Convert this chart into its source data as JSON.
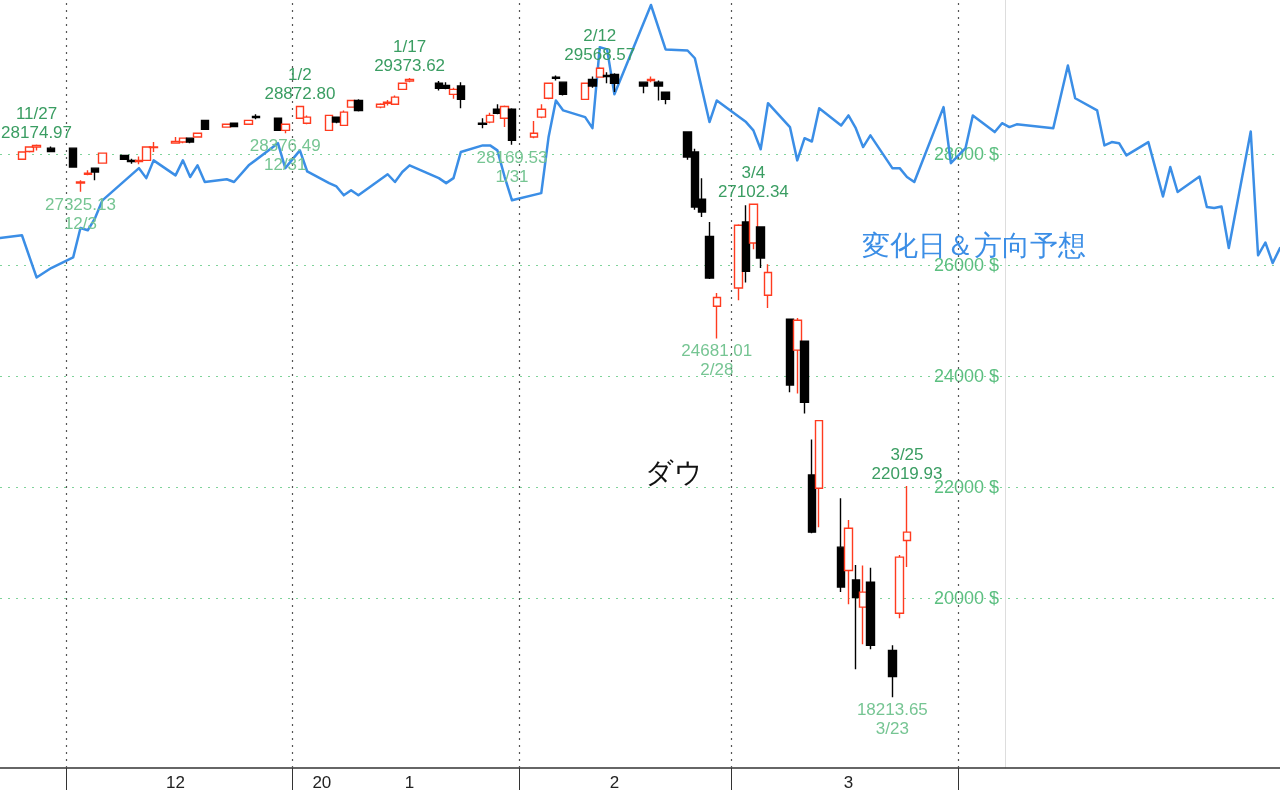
{
  "chart_data": {
    "type": "candlestick",
    "xlim": [
      "2019-11-22",
      "2020-05-15"
    ],
    "xticks": [
      {
        "value": "2019-12-01",
        "label": null
      },
      {
        "value": "2019-12-16",
        "label": "12"
      },
      {
        "value": "2020-01-01",
        "label": null
      },
      {
        "value": "2020-01-05",
        "label": "20"
      },
      {
        "value": "2020-01-17",
        "label": "1"
      },
      {
        "value": "2020-02-01",
        "label": null
      },
      {
        "value": "2020-02-14",
        "label": "2"
      },
      {
        "value": "2020-03-01",
        "label": null
      },
      {
        "value": "2020-03-17",
        "label": "3"
      },
      {
        "value": "2020-04-01",
        "label": null
      }
    ],
    "ylim": [
      16940,
      30780
    ],
    "yticks": [
      {
        "value": 20000,
        "label": "20000 $"
      },
      {
        "value": 22000,
        "label": "22000 $"
      },
      {
        "value": 24000,
        "label": "24000 $"
      },
      {
        "value": 26000,
        "label": "26000 $"
      },
      {
        "value": 28000,
        "label": "28000 $"
      }
    ],
    "grid": "y",
    "legend": false,
    "ref_lines": [
      {
        "axis": "x",
        "value": "2019-12-01",
        "color": "#555555",
        "line_style": "dotted"
      },
      {
        "axis": "x",
        "value": "2020-01-01",
        "color": "#555555",
        "line_style": "dotted"
      },
      {
        "axis": "x",
        "value": "2020-02-01",
        "color": "#555555",
        "line_style": "dotted"
      },
      {
        "axis": "x",
        "value": "2020-03-01",
        "color": "#555555",
        "line_style": "dotted"
      },
      {
        "axis": "x",
        "value": "2020-04-01",
        "color": "#555555",
        "line_style": "dotted"
      }
    ],
    "annotations": [
      {
        "text": "11/27\n28174.97",
        "x": "2019-11-27",
        "y": 28174.97
      },
      {
        "text": "27325.13\n12/3",
        "x": "2019-12-03",
        "y": 27325.13
      },
      {
        "text": "28376.49\n12/31",
        "x": "2019-12-31",
        "y": 28376.49
      },
      {
        "text": "1/2\n28872.80",
        "x": "2020-01-02",
        "y": 28872.8
      },
      {
        "text": "1/17\n29373.62",
        "x": "2020-01-17",
        "y": 29373.62
      },
      {
        "text": "28169.53\n1/31",
        "x": "2020-01-31",
        "y": 28169.53
      },
      {
        "text": "2/12\n29568.57",
        "x": "2020-02-12",
        "y": 29568.57
      },
      {
        "text": "24681.01\n2/28",
        "x": "2020-02-28",
        "y": 24681.01
      },
      {
        "text": "3/4\n27102.34",
        "x": "2020-03-04",
        "y": 27102.34
      },
      {
        "text": "18213.65\n3/23",
        "x": "2020-03-23",
        "y": 18213.65
      },
      {
        "text": "3/25\n22019.93",
        "x": "2020-03-25",
        "y": 22019.93
      }
    ],
    "series": [
      {
        "type": "line",
        "name": "変化日＆方向予想",
        "color": "#3b8ee6",
        "x": [
          "2019-11-22",
          "2019-11-25",
          "2019-11-27",
          "2019-11-29",
          "2019-12-02",
          "2019-12-03",
          "2019-12-04",
          "2019-12-05",
          "2019-12-06",
          "2019-12-11",
          "2019-12-12",
          "2019-12-13",
          "2019-12-16",
          "2019-12-17",
          "2019-12-18",
          "2019-12-19",
          "2019-12-20",
          "2019-12-23",
          "2019-12-24",
          "2019-12-26",
          "2019-12-30",
          "2019-12-31",
          "2020-01-02",
          "2020-01-03",
          "2020-01-06",
          "2020-01-07",
          "2020-01-08",
          "2020-01-09",
          "2020-01-10",
          "2020-01-14",
          "2020-01-15",
          "2020-01-16",
          "2020-01-17",
          "2020-01-21",
          "2020-01-22",
          "2020-01-23",
          "2020-01-24",
          "2020-01-27",
          "2020-01-28",
          "2020-01-29",
          "2020-01-30",
          "2020-01-31",
          "2020-02-04",
          "2020-02-05",
          "2020-02-06",
          "2020-02-07",
          "2020-02-10",
          "2020-02-11",
          "2020-02-12",
          "2020-02-13",
          "2020-02-14",
          "2020-02-19",
          "2020-02-21",
          "2020-02-24",
          "2020-02-25",
          "2020-02-27",
          "2020-02-28",
          "2020-03-03",
          "2020-03-04",
          "2020-03-05",
          "2020-03-06",
          "2020-03-09",
          "2020-03-10",
          "2020-03-11",
          "2020-03-12",
          "2020-03-13",
          "2020-03-16",
          "2020-03-17",
          "2020-03-18",
          "2020-03-19",
          "2020-03-20",
          "2020-03-23",
          "2020-03-24",
          "2020-03-25",
          "2020-03-26",
          "2020-03-30",
          "2020-03-31",
          "2020-04-02",
          "2020-04-03",
          "2020-04-06",
          "2020-04-07",
          "2020-04-08",
          "2020-04-09",
          "2020-04-14",
          "2020-04-16",
          "2020-04-17",
          "2020-04-20",
          "2020-04-21",
          "2020-04-22",
          "2020-04-23",
          "2020-04-24",
          "2020-04-27",
          "2020-04-29",
          "2020-04-30",
          "2020-05-01",
          "2020-05-04",
          "2020-05-05",
          "2020-05-06",
          "2020-05-07",
          "2020-05-08",
          "2020-05-11",
          "2020-05-12",
          "2020-05-13",
          "2020-05-14",
          "2020-05-15"
        ],
        "values": [
          26490,
          26540,
          25780,
          25950,
          26140,
          26670,
          26630,
          26850,
          27170,
          27750,
          27570,
          27890,
          27620,
          27890,
          27590,
          27800,
          27500,
          27550,
          27500,
          27800,
          28200,
          27750,
          28070,
          27690,
          27480,
          27420,
          27260,
          27350,
          27260,
          27640,
          27500,
          27680,
          27800,
          27570,
          27480,
          27570,
          28040,
          28160,
          28160,
          28070,
          27590,
          27170,
          27300,
          28310,
          28970,
          28790,
          28670,
          28470,
          29930,
          29890,
          29080,
          30690,
          29890,
          29870,
          29730,
          28580,
          28970,
          28580,
          28430,
          28090,
          28920,
          28490,
          27890,
          28290,
          28230,
          28830,
          28520,
          28700,
          28470,
          28130,
          28340,
          27750,
          27750,
          27590,
          27500,
          28850,
          27840,
          28110,
          28700,
          28400,
          28560,
          28490,
          28540,
          28470,
          29600,
          29010,
          28790,
          28160,
          28220,
          28200,
          27980,
          28220,
          27240,
          27770,
          27320,
          27600,
          27050,
          27030,
          27060,
          26310,
          28410,
          26180,
          26410,
          26040,
          26310
        ]
      },
      {
        "name": "ダウ",
        "colors": [
          "#ff3b1f",
          "#ff3b1f",
          "#ff3b1f",
          "#000000",
          "#000000",
          "#ff3b1f",
          "#ff3b1f",
          "#000000",
          "#ff3b1f",
          "#000000",
          "#000000",
          "#ff3b1f",
          "#ff3b1f",
          "#ff3b1f",
          "#ff3b1f",
          "#ff3b1f",
          "#000000",
          "#ff3b1f",
          "#000000",
          "#ff3b1f",
          "#000000",
          "#ff3b1f",
          "#000000",
          "#000000",
          "#ff3b1f",
          "#ff3b1f",
          "#ff3b1f",
          "#ff3b1f",
          "#000000",
          "#ff3b1f",
          "#ff3b1f",
          "#000000",
          "#ff3b1f",
          "#ff3b1f",
          "#ff3b1f",
          "#ff3b1f",
          "#ff3b1f",
          "#000000",
          "#000000",
          "#ff3b1f",
          "#000000",
          "#000000",
          "#ff3b1f",
          "#000000",
          "#ff3b1f",
          "#000000",
          "#ff3b1f",
          "#ff3b1f",
          "#ff3b1f",
          "#000000",
          "#000000",
          "#ff3b1f",
          "#000000",
          "#ff3b1f",
          "#000000",
          "#000000",
          "#000000",
          "#ff3b1f",
          "#000000",
          "#000000",
          "#000000",
          "#000000",
          "#000000",
          "#000000",
          "#ff3b1f",
          "#ff3b1f",
          "#000000",
          "#ff3b1f",
          "#000000",
          "#ff3b1f",
          "#000000",
          "#ff3b1f",
          "#000000",
          "#000000",
          "#ff3b1f",
          "#000000",
          "#ff3b1f",
          "#000000",
          "#ff3b1f",
          "#000000",
          "#000000",
          "#ff3b1f",
          "#ff3b1f"
        ],
        "x": [
          "2019-11-25",
          "2019-11-26",
          "2019-11-27",
          "2019-11-29",
          "2019-12-02",
          "2019-12-03",
          "2019-12-04",
          "2019-12-05",
          "2019-12-06",
          "2019-12-09",
          "2019-12-10",
          "2019-12-11",
          "2019-12-12",
          "2019-12-13",
          "2019-12-16",
          "2019-12-17",
          "2019-12-18",
          "2019-12-19",
          "2019-12-20",
          "2019-12-23",
          "2019-12-24",
          "2019-12-26",
          "2019-12-27",
          "2019-12-30",
          "2019-12-31",
          "2020-01-02",
          "2020-01-03",
          "2020-01-06",
          "2020-01-07",
          "2020-01-08",
          "2020-01-09",
          "2020-01-10",
          "2020-01-13",
          "2020-01-14",
          "2020-01-15",
          "2020-01-16",
          "2020-01-17",
          "2020-01-21",
          "2020-01-22",
          "2020-01-23",
          "2020-01-24",
          "2020-01-27",
          "2020-01-28",
          "2020-01-29",
          "2020-01-30",
          "2020-01-31",
          "2020-02-03",
          "2020-02-04",
          "2020-02-05",
          "2020-02-06",
          "2020-02-07",
          "2020-02-10",
          "2020-02-11",
          "2020-02-12",
          "2020-02-13",
          "2020-02-14",
          "2020-02-18",
          "2020-02-19",
          "2020-02-20",
          "2020-02-21",
          "2020-02-24",
          "2020-02-25",
          "2020-02-26",
          "2020-02-27",
          "2020-02-28",
          "2020-03-02",
          "2020-03-03",
          "2020-03-04",
          "2020-03-05",
          "2020-03-06",
          "2020-03-09",
          "2020-03-10",
          "2020-03-11",
          "2020-03-12",
          "2020-03-13",
          "2020-03-16",
          "2020-03-17",
          "2020-03-18",
          "2020-03-19",
          "2020-03-20",
          "2020-03-23",
          "2020-03-24",
          "2020-03-25"
        ],
        "ohlc": [
          [
            27910,
            28040,
            27900,
            28040
          ],
          [
            28050,
            28130,
            28030,
            28130
          ],
          [
            28130,
            28174.97,
            28070,
            28160
          ],
          [
            28110,
            28140,
            28040,
            28050
          ],
          [
            28110,
            28110,
            27760,
            27770
          ],
          [
            27480,
            27530,
            27325.13,
            27500
          ],
          [
            27640,
            27710,
            27620,
            27660
          ],
          [
            27750,
            27760,
            27530,
            27680
          ],
          [
            27840,
            28030,
            27830,
            28020
          ],
          [
            27980,
            27990,
            27900,
            27910
          ],
          [
            27890,
            27920,
            27830,
            27870
          ],
          [
            27870,
            27960,
            27820,
            27890
          ],
          [
            27890,
            28140,
            27880,
            28130
          ],
          [
            28120,
            28220,
            28040,
            28130
          ],
          [
            28200,
            28310,
            28190,
            28230
          ],
          [
            28220,
            28300,
            28200,
            28290
          ],
          [
            28290,
            28300,
            28200,
            28220
          ],
          [
            28310,
            28390,
            28300,
            28380
          ],
          [
            28610,
            28620,
            28440,
            28450
          ],
          [
            28490,
            28550,
            28480,
            28540
          ],
          [
            28560,
            28570,
            28490,
            28500
          ],
          [
            28540,
            28620,
            28530,
            28610
          ],
          [
            28680,
            28720,
            28630,
            28660
          ],
          [
            28650,
            28660,
            28420,
            28430
          ],
          [
            28430,
            28550,
            28376.49,
            28540
          ],
          [
            28650,
            28872.8,
            28640,
            28860
          ],
          [
            28560,
            28700,
            28540,
            28670
          ],
          [
            28430,
            28710,
            28420,
            28700
          ],
          [
            28670,
            28680,
            28560,
            28580
          ],
          [
            28520,
            28790,
            28510,
            28760
          ],
          [
            28850,
            28980,
            28840,
            28970
          ],
          [
            28970,
            28990,
            28770,
            28790
          ],
          [
            28850,
            28920,
            28830,
            28900
          ],
          [
            28920,
            28980,
            28880,
            28940
          ],
          [
            28900,
            29060,
            28890,
            29030
          ],
          [
            29170,
            29290,
            29160,
            29280
          ],
          [
            29320,
            29373.62,
            29300,
            29350
          ],
          [
            29280,
            29320,
            29150,
            29190
          ],
          [
            29240,
            29300,
            29170,
            29190
          ],
          [
            29080,
            29200,
            29000,
            29170
          ],
          [
            29230,
            29300,
            28830,
            28990
          ],
          [
            28560,
            28650,
            28470,
            28540
          ],
          [
            28580,
            28750,
            28560,
            28700
          ],
          [
            28810,
            28900,
            28720,
            28740
          ],
          [
            28650,
            28880,
            28490,
            28860
          ],
          [
            28810,
            28830,
            28169.53,
            28250
          ],
          [
            28310,
            28600,
            28290,
            28380
          ],
          [
            28670,
            28900,
            28650,
            28810
          ],
          [
            29010,
            29290,
            28990,
            29280
          ],
          [
            29390,
            29420,
            29330,
            29370
          ],
          [
            29300,
            29310,
            29060,
            29080
          ],
          [
            28990,
            29290,
            28980,
            29280
          ],
          [
            29350,
            29400,
            29200,
            29230
          ],
          [
            29390,
            29568.57,
            29380,
            29550
          ],
          [
            29420,
            29480,
            29280,
            29400
          ],
          [
            29440,
            29460,
            29120,
            29280
          ],
          [
            29300,
            29300,
            29100,
            29230
          ],
          [
            29330,
            29400,
            29300,
            29350
          ],
          [
            29300,
            29330,
            28970,
            29230
          ],
          [
            29120,
            29130,
            28900,
            28990
          ],
          [
            28400,
            28400,
            27900,
            27950
          ],
          [
            28040,
            28100,
            27000,
            27050
          ],
          [
            27190,
            27570,
            26870,
            26960
          ],
          [
            26520,
            26780,
            25750,
            25770
          ],
          [
            25260,
            25500,
            24681.01,
            25420
          ],
          [
            25590,
            26740,
            25370,
            26720
          ],
          [
            26780,
            27080,
            25690,
            25890
          ],
          [
            26400,
            27102.34,
            26290,
            27100
          ],
          [
            26690,
            26700,
            25950,
            26130
          ],
          [
            25460,
            26020,
            25230,
            25870
          ],
          [
            25030,
            25040,
            23710,
            23840
          ],
          [
            24470,
            25050,
            23690,
            25010
          ],
          [
            24630,
            24640,
            23330,
            23530
          ],
          [
            22220,
            22860,
            21170,
            21190
          ],
          [
            21980,
            23210,
            21280,
            23200
          ],
          [
            20920,
            21800,
            20110,
            20200
          ],
          [
            20500,
            21410,
            19890,
            21260
          ],
          [
            20330,
            20600,
            18720,
            20010
          ],
          [
            19840,
            20590,
            19170,
            20110
          ],
          [
            20290,
            20550,
            19080,
            19150
          ],
          [
            19060,
            19150,
            18213.65,
            18590
          ],
          [
            19730,
            20780,
            19640,
            20740
          ],
          [
            21040,
            22019.93,
            20560,
            21190
          ]
        ]
      }
    ]
  }
}
